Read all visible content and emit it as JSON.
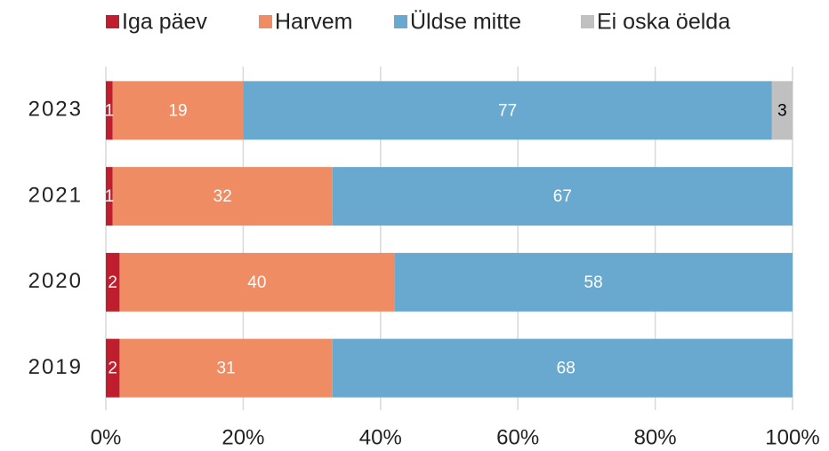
{
  "chart_data": {
    "type": "stacked_bar_horizontal",
    "categories": [
      "2023",
      "2021",
      "2020",
      "2019"
    ],
    "series": [
      {
        "name": "Iga päev",
        "color": "#be1e2d",
        "values": [
          1,
          1,
          2,
          2
        ]
      },
      {
        "name": "Harvem",
        "color": "#f08c64",
        "values": [
          19,
          32,
          40,
          31
        ]
      },
      {
        "name": "Üldse mitte",
        "color": "#69a9d0",
        "values": [
          77,
          67,
          58,
          68
        ]
      },
      {
        "name": "Ei oska öelda",
        "color": "#c0c0c0",
        "values": [
          3,
          null,
          null,
          null
        ]
      }
    ],
    "xlim": [
      0,
      100
    ],
    "xticks": [
      {
        "value": 0,
        "label": "0%"
      },
      {
        "value": 20,
        "label": "20%"
      },
      {
        "value": 40,
        "label": "40%"
      },
      {
        "value": 60,
        "label": "60%"
      },
      {
        "value": 80,
        "label": "80%"
      },
      {
        "value": 100,
        "label": "100%"
      }
    ],
    "grid": true,
    "legend": "top"
  }
}
